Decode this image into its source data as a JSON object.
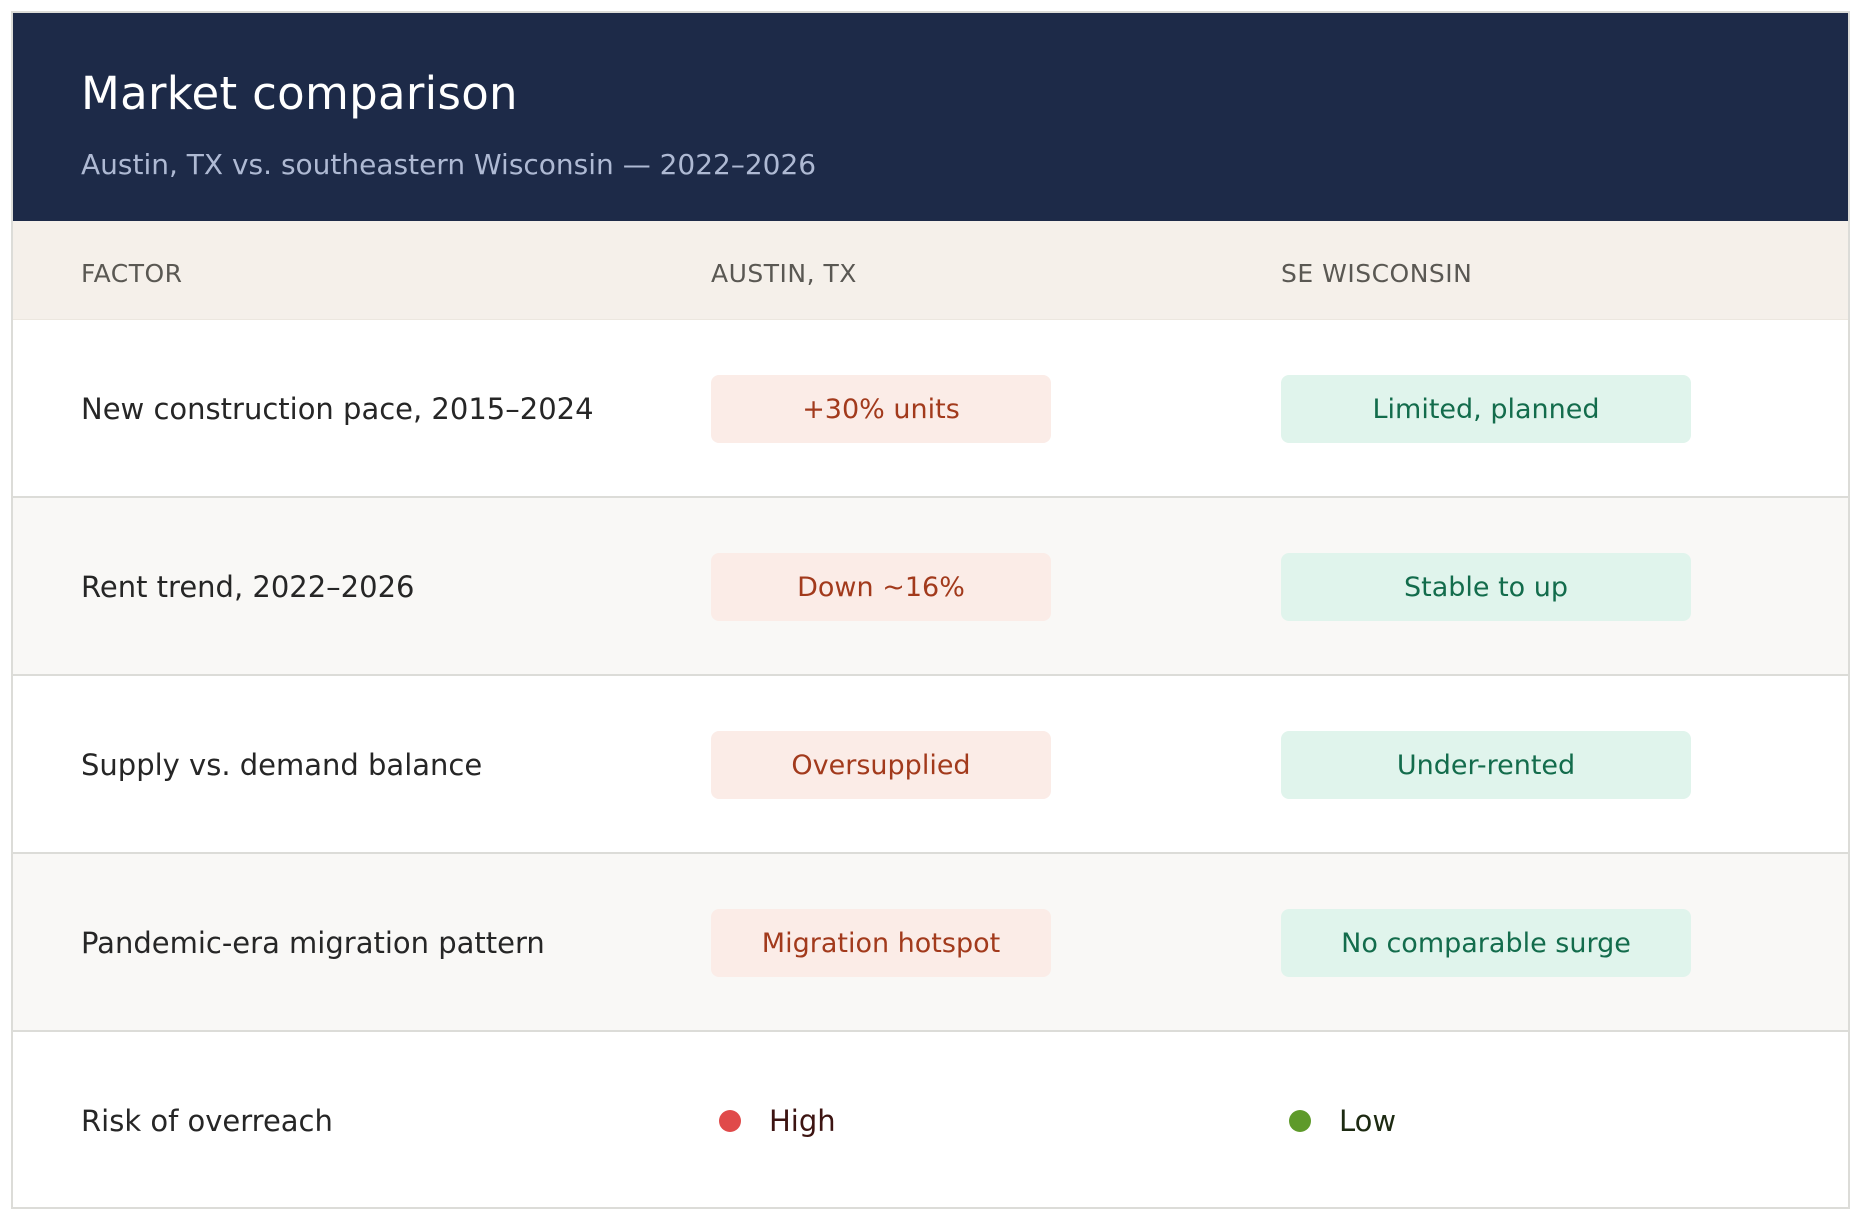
{
  "header": {
    "title": "Market comparison",
    "subtitle": "Austin, TX vs. southeastern Wisconsin — 2022–2026"
  },
  "columns": {
    "factor": "FACTOR",
    "austin": "AUSTIN, TX",
    "wisconsin": "SE WISCONSIN"
  },
  "rows": [
    {
      "factor": "New construction pace, 2015–2024",
      "austin": "+30% units",
      "wisconsin": "Limited, planned"
    },
    {
      "factor": "Rent trend, 2022–2026",
      "austin": "Down ~16%",
      "wisconsin": "Stable to up"
    },
    {
      "factor": "Supply vs. demand balance",
      "austin": "Oversupplied",
      "wisconsin": "Under-rented"
    },
    {
      "factor": "Pandemic-era migration pattern",
      "austin": "Migration hotspot",
      "wisconsin": "No comparable surge"
    }
  ],
  "risk": {
    "factor": "Risk of overreach",
    "austin": "High",
    "wisconsin": "Low",
    "austin_color": "#e04a4a",
    "wisconsin_color": "#5e9a2a"
  }
}
